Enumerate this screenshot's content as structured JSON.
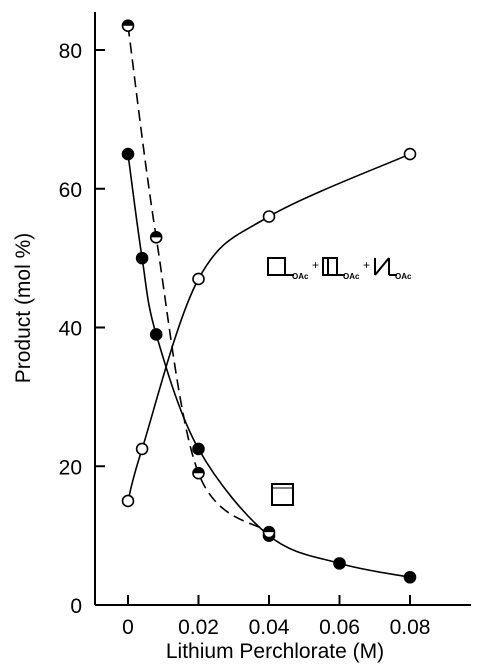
{
  "chart_data": {
    "type": "scatter",
    "xlabel": "Lithium Perchlorate (M)",
    "ylabel": "Product (mol %)",
    "xlim": [
      -0.01,
      0.1
    ],
    "ylim": [
      0,
      88
    ],
    "x_ticks": [
      0,
      0.02,
      0.04,
      0.06,
      0.08
    ],
    "x_tick_labels": [
      "0",
      "0.02",
      "0.04",
      "0.06",
      "0.08"
    ],
    "y_ticks": [
      0,
      20,
      40,
      60,
      80
    ],
    "y_tick_labels": [
      "0",
      "20",
      "40",
      "60",
      "80"
    ],
    "grid": false,
    "legend": "none",
    "series": [
      {
        "marker": "open-circle",
        "line": "solid",
        "points": [
          [
            0,
            15
          ],
          [
            0.004,
            22.5
          ],
          [
            0.02,
            47
          ],
          [
            0.04,
            56
          ],
          [
            0.08,
            65
          ]
        ]
      },
      {
        "marker": "filled-circle",
        "line": "solid",
        "points": [
          [
            0,
            65
          ],
          [
            0.004,
            50
          ],
          [
            0.008,
            39
          ],
          [
            0.02,
            22.5
          ],
          [
            0.04,
            10
          ],
          [
            0.06,
            6
          ],
          [
            0.08,
            4
          ]
        ]
      },
      {
        "marker": "half-filled-circle",
        "line": "dashed",
        "points": [
          [
            0,
            83.5
          ],
          [
            0.008,
            53
          ],
          [
            0.02,
            19
          ],
          [
            0.04,
            10.5
          ]
        ]
      }
    ],
    "annotations": {
      "product_label": {
        "subscripts": [
          "OAc",
          "OAc",
          "OAc"
        ],
        "plus": "+",
        "anchor": [
          0.04,
          48
        ]
      },
      "reactant_label": {
        "anchor": [
          0.041,
          15.5
        ]
      }
    }
  }
}
